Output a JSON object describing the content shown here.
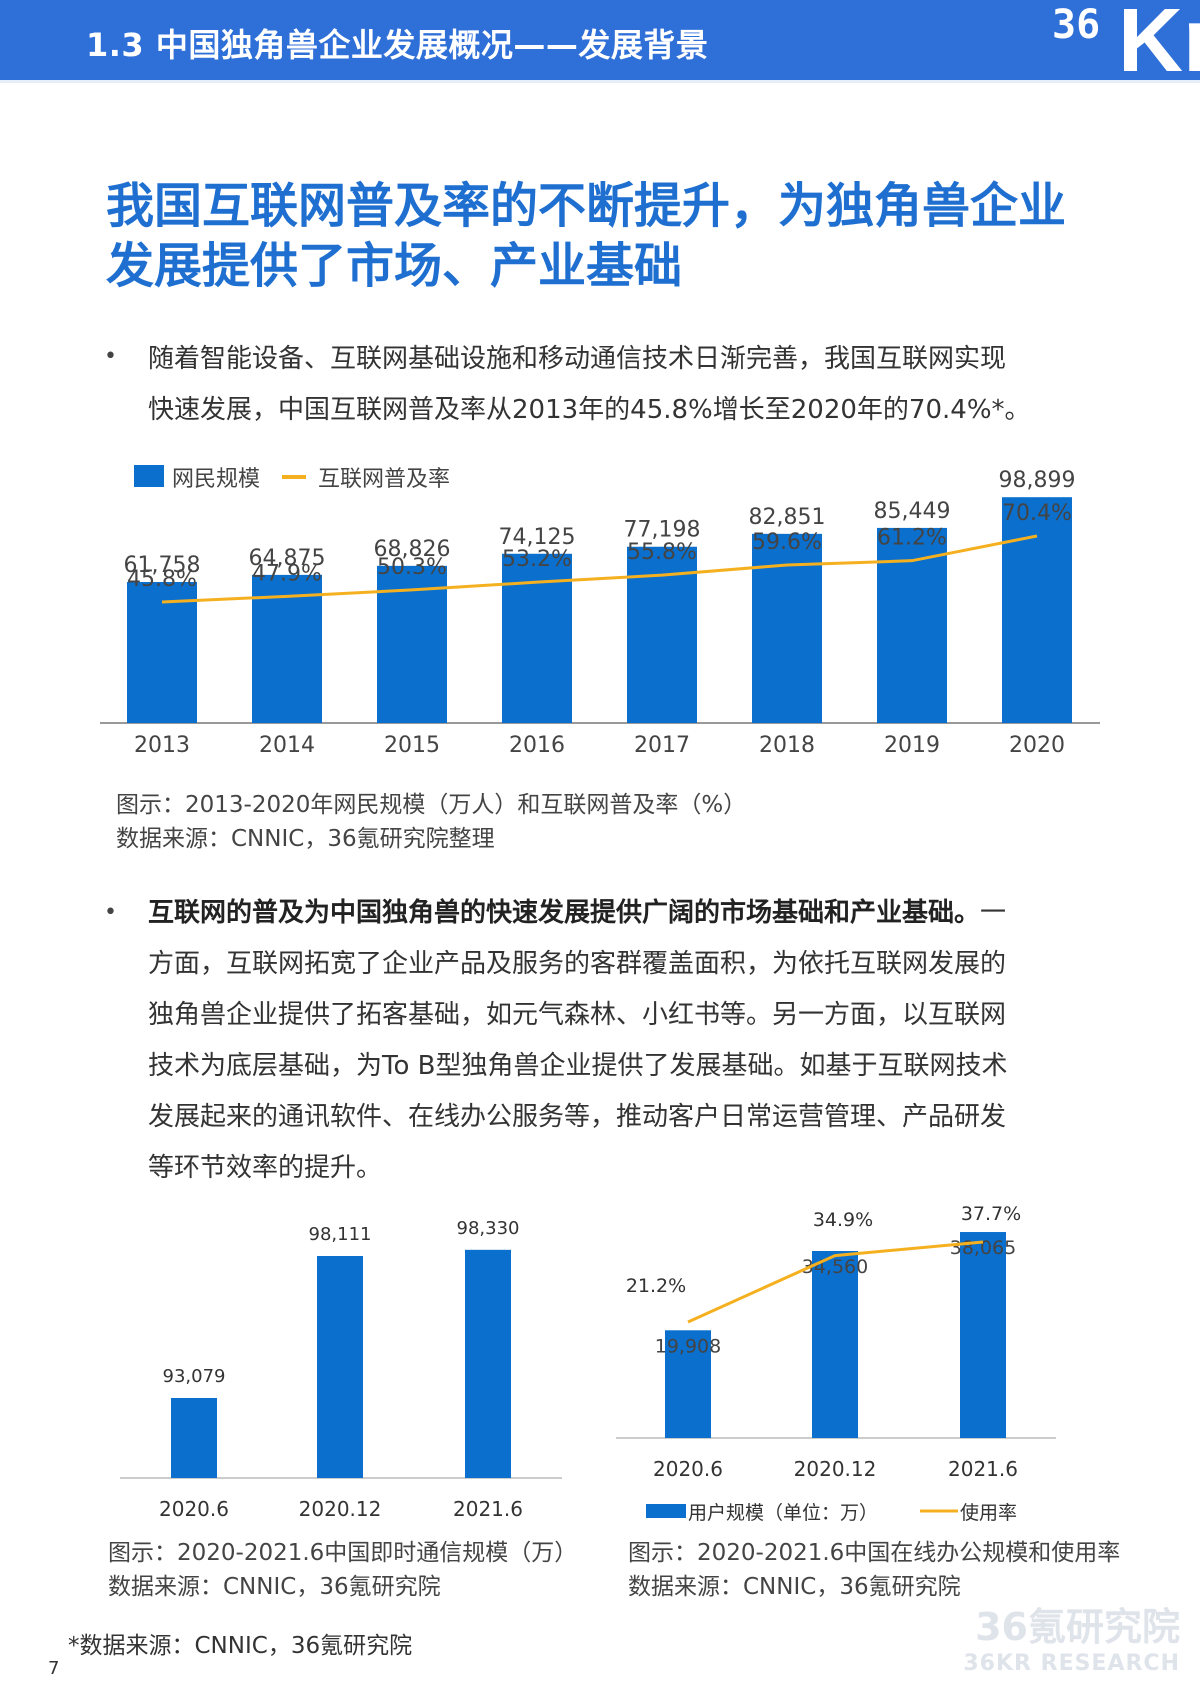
{
  "header": {
    "title": "1.3 中国独角兽企业发展概况——发展背景",
    "logo_num": "36",
    "logo_letter": "Kr"
  },
  "headline": {
    "line1": "我国互联网普及率的不断提升，为独角兽企业",
    "line2": "发展提供了市场、产业基础"
  },
  "bullet_mark": "•",
  "para1": {
    "line1": "随着智能设备、互联网基础设施和移动通信技术日渐完善，我国互联网实现",
    "line2": "快速发展，中国互联网普及率从2013年的45.8%增长至2020年的70.4%*。"
  },
  "chart1": {
    "legend_bar": "网民规模",
    "legend_line": "互联网普及率",
    "caption": "图示：2013-2020年网民规模（万人）和互联网普及率（%）",
    "source": "数据来源：CNNIC，36氪研究院整理"
  },
  "para2": {
    "bold": "互联网的普及为中国独角兽的快速发展提供广阔的市场基础和产业基础。",
    "line1_rest": "一",
    "line2": "方面，互联网拓宽了企业产品及服务的客群覆盖面积，为依托互联网发展的",
    "line3": "独角兽企业提供了拓客基础，如元气森林、小红书等。另一方面，以互联网",
    "line4": "技术为底层基础，为To  B型独角兽企业提供了发展基础。如基于互联网技术",
    "line5": "发展起来的通讯软件、在线办公服务等，推动客户日常运营管理、产品研发",
    "line6": "等环节效率的提升。"
  },
  "chart2": {
    "caption": "图示：2020-2021.6中国即时通信规模（万）",
    "source": "数据来源：CNNIC，36氪研究院"
  },
  "chart3": {
    "legend_bar": "用户规模（单位：万）",
    "legend_line": "使用率",
    "caption": "图示：2020-2021.6中国在线办公规模和使用率",
    "source": "数据来源：CNNIC，36氪研究院"
  },
  "footnote": "*数据来源：CNNIC，36氪研究院",
  "page_number": "7",
  "watermark": {
    "cn": "36氪研究院",
    "en": "36KR RESEARCH"
  },
  "colors": {
    "bar": "#0a6fcd",
    "line": "#f5b020",
    "header": "#2f6fd8",
    "headline": "#1f6fd1"
  },
  "chart_data": [
    {
      "type": "bar",
      "categories": [
        "2013",
        "2014",
        "2015",
        "2016",
        "2017",
        "2018",
        "2019",
        "2020"
      ],
      "series": [
        {
          "name": "网民规模",
          "type": "bar",
          "values": [
            61758,
            64875,
            68826,
            74125,
            77198,
            82851,
            85449,
            98899
          ],
          "labels": [
            "61,758",
            "64,875",
            "68,826",
            "74,125",
            "77,198",
            "82,851",
            "85,449",
            "98,899"
          ]
        },
        {
          "name": "互联网普及率",
          "type": "line",
          "values": [
            45.8,
            47.9,
            50.3,
            53.2,
            55.8,
            59.6,
            61.2,
            70.4
          ],
          "labels": [
            "45.8%",
            "47.9%",
            "50.3%",
            "53.2%",
            "55.8%",
            "59.6%",
            "61.2%",
            "70.4%"
          ]
        }
      ],
      "legend": "top-left"
    },
    {
      "type": "bar",
      "categories": [
        "2020.6",
        "2020.12",
        "2021.6"
      ],
      "values": [
        93079,
        98111,
        98330
      ],
      "labels": [
        "93,079",
        "98,111",
        "98,330"
      ]
    },
    {
      "type": "bar",
      "categories": [
        "2020.6",
        "2020.12",
        "2021.6"
      ],
      "series": [
        {
          "name": "用户规模（单位：万）",
          "type": "bar",
          "values": [
            19908,
            34560,
            38065
          ],
          "labels": [
            "19,908",
            "34,560",
            "38,065"
          ]
        },
        {
          "name": "使用率",
          "type": "line",
          "values": [
            21.2,
            34.9,
            37.7
          ],
          "labels": [
            "21.2%",
            "34.9%",
            "37.7%"
          ]
        }
      ],
      "legend": "bottom"
    }
  ]
}
